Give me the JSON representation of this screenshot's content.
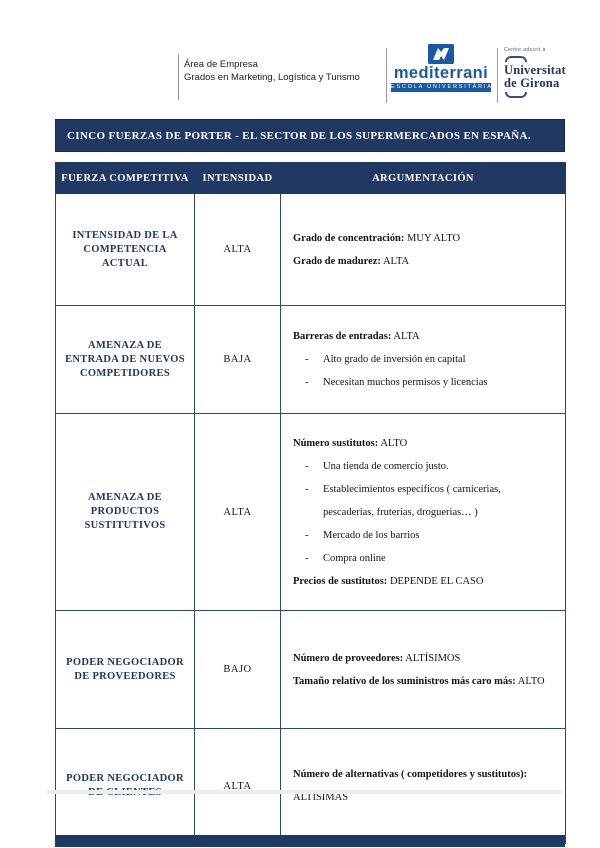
{
  "page": {
    "header": {
      "department": "Área de Empresa",
      "program": "Grados en Marketing, Logística y Turismo",
      "mediterrani": {
        "name": "mediterrani",
        "subtitle": "ESCOLA UNIVERSITÀRIA"
      },
      "udg": {
        "affiliation": "Centre adscrit a",
        "name_line1": "Universitat",
        "name_line2": "de Girona"
      }
    },
    "title": "CINCO FUERZAS DE PORTER - EL SECTOR DE LOS SUPERMERCADOS EN ESPAÑA.",
    "table": {
      "headers": [
        "FUERZA COMPETITIVA",
        "INTENSIDAD",
        "ARGUMENTACIÓN"
      ],
      "rows": [
        {
          "fuerza": "INTENSIDAD DE LA COMPETENCIA ACTUAL",
          "intensidad": "ALTA",
          "argumentos": [
            {
              "type": "label",
              "label": "Grado de concentración:",
              "value": "MUY ALTO"
            },
            {
              "type": "label",
              "label": "Grado de madurez:",
              "value": "ALTA"
            }
          ]
        },
        {
          "fuerza": "AMENAZA DE ENTRADA DE NUEVOS COMPETIDORES",
          "intensidad": "BAJA",
          "argumentos": [
            {
              "type": "label",
              "label": "Barreras de entradas:",
              "value": "ALTA"
            },
            {
              "type": "bullet",
              "text": "Alto grado de inversión en capital"
            },
            {
              "type": "bullet",
              "text": "Necesitan muchos permisos y licencias"
            }
          ]
        },
        {
          "fuerza": "AMENAZA DE PRODUCTOS SUSTITUTIVOS",
          "intensidad": "ALTA",
          "argumentos": [
            {
              "type": "label",
              "label": "Número sustitutos:",
              "value": "ALTO"
            },
            {
              "type": "bullet",
              "text": "Una tienda de comercio justo."
            },
            {
              "type": "bullet",
              "text": "Establecimientos específicos ( carnicerias, pescaderias, fruterias, droguerias… )"
            },
            {
              "type": "bullet",
              "text": "Mercado de los barrios"
            },
            {
              "type": "bullet",
              "text": "Compra online"
            },
            {
              "type": "label",
              "label": "Precios de sustitutos:",
              "value": "DEPENDE EL CASO"
            }
          ]
        },
        {
          "fuerza": "PODER NEGOCIADOR DE PROVEEDORES",
          "intensidad": "BAJO",
          "argumentos": [
            {
              "type": "label",
              "label": "Número de proveedores:",
              "value": "ALTÍSIMOS"
            },
            {
              "type": "label",
              "label": "Tamaño relativo de los suministros más caro más:",
              "value": "ALTO"
            }
          ]
        },
        {
          "fuerza": "PODER NEGOCIADOR DE CLIENTES",
          "intensidad": "ALTA",
          "argumentos": [
            {
              "type": "label",
              "label": "Número de alternativas ( competidores y sustitutos):",
              "value": "ALTÍSIMAS"
            }
          ]
        }
      ]
    },
    "colors": {
      "navy": "#1F3864",
      "brand_blue": "#1A5AA5",
      "body_text": "#1B1B1B"
    }
  }
}
